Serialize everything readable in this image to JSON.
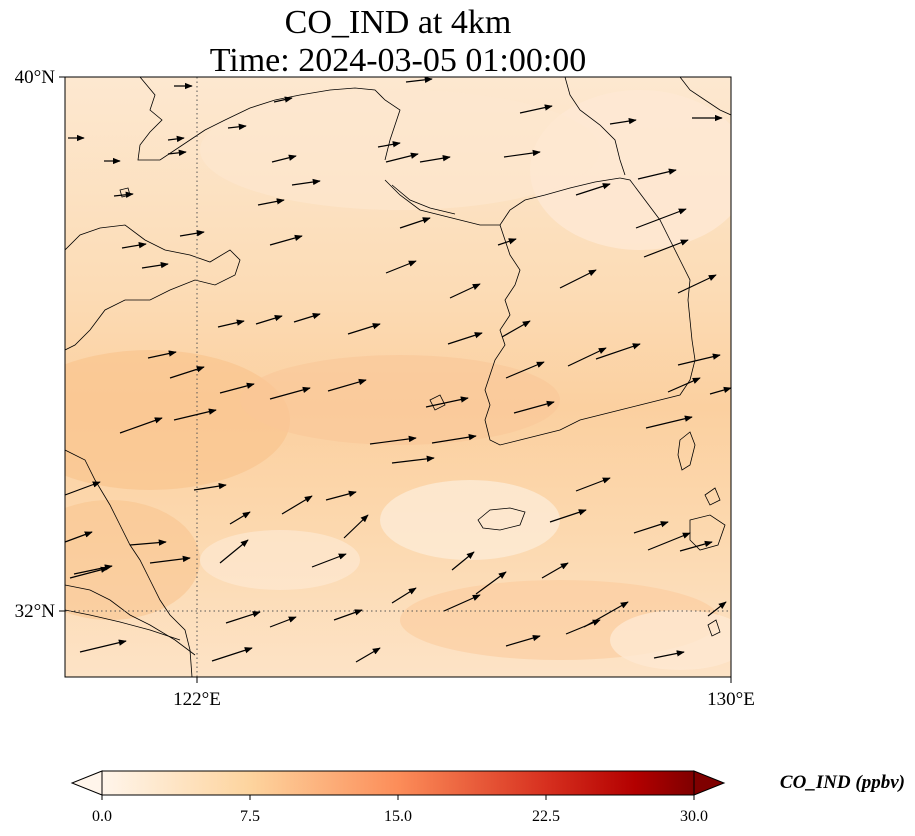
{
  "title": {
    "line1": "CO_IND at 4km",
    "line2": "Time: 2024-03-05 01:00:00"
  },
  "map": {
    "extent": {
      "lon_min": 120.0,
      "lon_max": 130.0,
      "lat_min": 31.0,
      "lat_max": 40.0
    },
    "gridlines": {
      "lons": [
        122
      ],
      "lats": [
        32
      ],
      "style": "dotted"
    },
    "x_ticks": [
      {
        "value": 122,
        "label": "122°E"
      },
      {
        "value": 130,
        "label": "130°E"
      }
    ],
    "y_ticks": [
      {
        "value": 40,
        "label": "40°N"
      },
      {
        "value": 32,
        "label": "32°N"
      }
    ],
    "field_colors": {
      "light": "#fde6cc",
      "mid": "#fcd7ad",
      "dark": "#f9c48f"
    }
  },
  "colorbar": {
    "label": "CO_IND (ppbv)",
    "min": 0.0,
    "max": 30.0,
    "ticks": [
      "0.0",
      "7.5",
      "15.0",
      "22.5",
      "30.0"
    ],
    "colors": [
      "#fff5eb",
      "#fdd49e",
      "#fc8d59",
      "#d7301f",
      "#b30000",
      "#7f0000"
    ],
    "extend": "both"
  }
}
